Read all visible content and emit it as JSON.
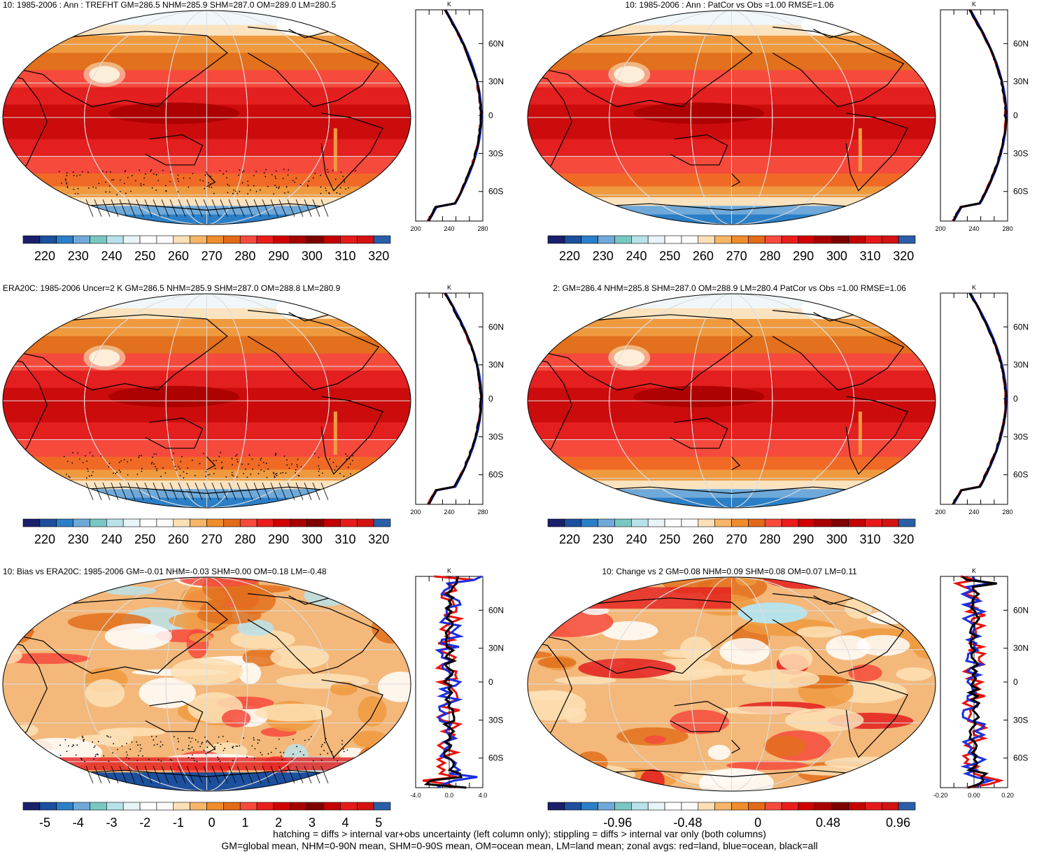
{
  "panels": [
    {
      "title": "10: 1985-2006 : Ann : TREFHT GM=286.5 NHM=285.9 SHM=287.0 OM=289.0 LM=280.5",
      "zonal_unit": "K",
      "lat_labels": [
        "60N",
        "30N",
        "0",
        "30S",
        "60S"
      ],
      "x_ticks": [
        "200",
        "240",
        "280"
      ],
      "colorbar_labels": [
        "220",
        "230",
        "240",
        "250",
        "260",
        "270",
        "280",
        "290",
        "300",
        "310",
        "320"
      ],
      "colorbar_colors": [
        "#1a1f6b",
        "#1c4f9e",
        "#2b7fc6",
        "#6fa9d9",
        "#79c7c2",
        "#b8e2ea",
        "#e8f4f7",
        "#ffffff",
        "#fbfbfb",
        "#fde0b6",
        "#f7b567",
        "#ef8c2c",
        "#e26a18",
        "#f64a3d",
        "#ec1c1c",
        "#d10000",
        "#a80000",
        "#7f0000",
        "#c40000",
        "#e61a1a",
        "#d41212",
        "#2a5ea8"
      ],
      "colorbar_font": 18,
      "hatching": true,
      "stipple": true,
      "map_style": "temperature"
    },
    {
      "title": "10: 1985-2006 : Ann : PatCor vs Obs =1.00 RMSE=1.06",
      "zonal_unit": "K",
      "lat_labels": [
        "60N",
        "30N",
        "0",
        "30S",
        "60S"
      ],
      "x_ticks": [
        "200",
        "240",
        "280"
      ],
      "colorbar_labels": [
        "220",
        "230",
        "240",
        "250",
        "260",
        "270",
        "280",
        "290",
        "300",
        "310",
        "320"
      ],
      "colorbar_colors": [
        "#1a1f6b",
        "#1c4f9e",
        "#2b7fc6",
        "#6fa9d9",
        "#79c7c2",
        "#b8e2ea",
        "#e8f4f7",
        "#ffffff",
        "#fbfbfb",
        "#fde0b6",
        "#f7b567",
        "#ef8c2c",
        "#e26a18",
        "#f64a3d",
        "#ec1c1c",
        "#d10000",
        "#a80000",
        "#7f0000",
        "#c40000",
        "#e61a1a",
        "#d41212",
        "#2a5ea8"
      ],
      "colorbar_font": 18,
      "hatching": false,
      "stipple": false,
      "map_style": "temperature"
    },
    {
      "title": "ERA20C: 1985-2006 Uncer=2 K GM=286.5 NHM=285.9 SHM=287.0 OM=288.8 LM=280.9",
      "zonal_unit": "K",
      "lat_labels": [
        "60N",
        "30N",
        "0",
        "30S",
        "60S"
      ],
      "x_ticks": [
        "200",
        "240",
        "280"
      ],
      "colorbar_labels": [
        "220",
        "230",
        "240",
        "250",
        "260",
        "270",
        "280",
        "290",
        "300",
        "310",
        "320"
      ],
      "colorbar_colors": [
        "#1a1f6b",
        "#1c4f9e",
        "#2b7fc6",
        "#6fa9d9",
        "#79c7c2",
        "#b8e2ea",
        "#e8f4f7",
        "#ffffff",
        "#fbfbfb",
        "#fde0b6",
        "#f7b567",
        "#ef8c2c",
        "#e26a18",
        "#f64a3d",
        "#ec1c1c",
        "#d10000",
        "#a80000",
        "#7f0000",
        "#c40000",
        "#e61a1a",
        "#d41212",
        "#2a5ea8"
      ],
      "colorbar_font": 18,
      "hatching": true,
      "stipple": true,
      "map_style": "temperature"
    },
    {
      "title": "2: GM=286.4 NHM=285.8 SHM=287.0 OM=288.9 LM=280.4 PatCor vs Obs =1.00 RMSE=1.06",
      "zonal_unit": "K",
      "lat_labels": [
        "60N",
        "30N",
        "0",
        "30S",
        "60S"
      ],
      "x_ticks": [
        "200",
        "240",
        "280"
      ],
      "colorbar_labels": [
        "220",
        "230",
        "240",
        "250",
        "260",
        "270",
        "280",
        "290",
        "300",
        "310",
        "320"
      ],
      "colorbar_colors": [
        "#1a1f6b",
        "#1c4f9e",
        "#2b7fc6",
        "#6fa9d9",
        "#79c7c2",
        "#b8e2ea",
        "#e8f4f7",
        "#ffffff",
        "#fbfbfb",
        "#fde0b6",
        "#f7b567",
        "#ef8c2c",
        "#e26a18",
        "#f64a3d",
        "#ec1c1c",
        "#d10000",
        "#a80000",
        "#7f0000",
        "#c40000",
        "#e61a1a",
        "#d41212",
        "#2a5ea8"
      ],
      "colorbar_font": 18,
      "hatching": false,
      "stipple": false,
      "map_style": "temperature"
    },
    {
      "title": "10: Bias vs ERA20C: 1985-2006 GM=-0.01 NHM=-0.03 SHM=0.00 OM=0.18 LM=-0.48",
      "zonal_unit": "K",
      "lat_labels": [
        "60N",
        "30N",
        "0",
        "30S",
        "60S"
      ],
      "x_ticks": [
        "-4.0",
        "0.0",
        "4.0"
      ],
      "colorbar_labels": [
        "-5",
        "-4",
        "-3",
        "-2",
        "-1",
        "0",
        "1",
        "2",
        "3",
        "4",
        "5"
      ],
      "colorbar_colors": [
        "#1a1f6b",
        "#1c4f9e",
        "#2b7fc6",
        "#6fa9d9",
        "#79c7c2",
        "#b8e2ea",
        "#e8f4f7",
        "#ffffff",
        "#fbfbfb",
        "#fde0b6",
        "#f7b567",
        "#ef8c2c",
        "#e26a18",
        "#f64a3d",
        "#ec1c1c",
        "#d10000",
        "#a80000",
        "#7f0000",
        "#c40000",
        "#e61a1a",
        "#d41212",
        "#2a5ea8"
      ],
      "colorbar_font": 18,
      "hatching": true,
      "stipple": true,
      "map_style": "bias"
    },
    {
      "title": "10: Change vs 2 GM=0.08 NHM=0.09 SHM=0.08 OM=0.07 LM=0.11",
      "zonal_unit": "K",
      "lat_labels": [
        "60N",
        "30N",
        "0",
        "30S",
        "60S"
      ],
      "x_ticks": [
        "-0.20",
        "0.00",
        "0.20"
      ],
      "colorbar_labels": [
        "-0.96",
        "-0.48",
        "0",
        "0.48",
        "0.96"
      ],
      "colorbar_colors": [
        "#1a1f6b",
        "#1c4f9e",
        "#2b7fc6",
        "#6fa9d9",
        "#79c7c2",
        "#b8e2ea",
        "#e8f4f7",
        "#ffffff",
        "#fbfbfb",
        "#fde0b6",
        "#f7b567",
        "#ef8c2c",
        "#e26a18",
        "#f64a3d",
        "#ec1c1c",
        "#d10000",
        "#a80000",
        "#7f0000",
        "#c40000",
        "#e61a1a",
        "#d41212",
        "#2a5ea8"
      ],
      "colorbar_font": 18,
      "hatching": false,
      "stipple": false,
      "map_style": "change"
    }
  ],
  "footer": {
    "line1": "hatching = diffs > internal var+obs uncertainty (left column only); stippling = diffs > internal var only (both columns)",
    "line2": "GM=global mean, NHM=0-90N mean, SHM=0-90S mean, OM=ocean mean, LM=land mean; zonal avgs: red=land, blue=ocean, black=all"
  },
  "legend_colors": {
    "land": "#e8120c",
    "ocean": "#1a2fe0",
    "all": "#000000"
  }
}
